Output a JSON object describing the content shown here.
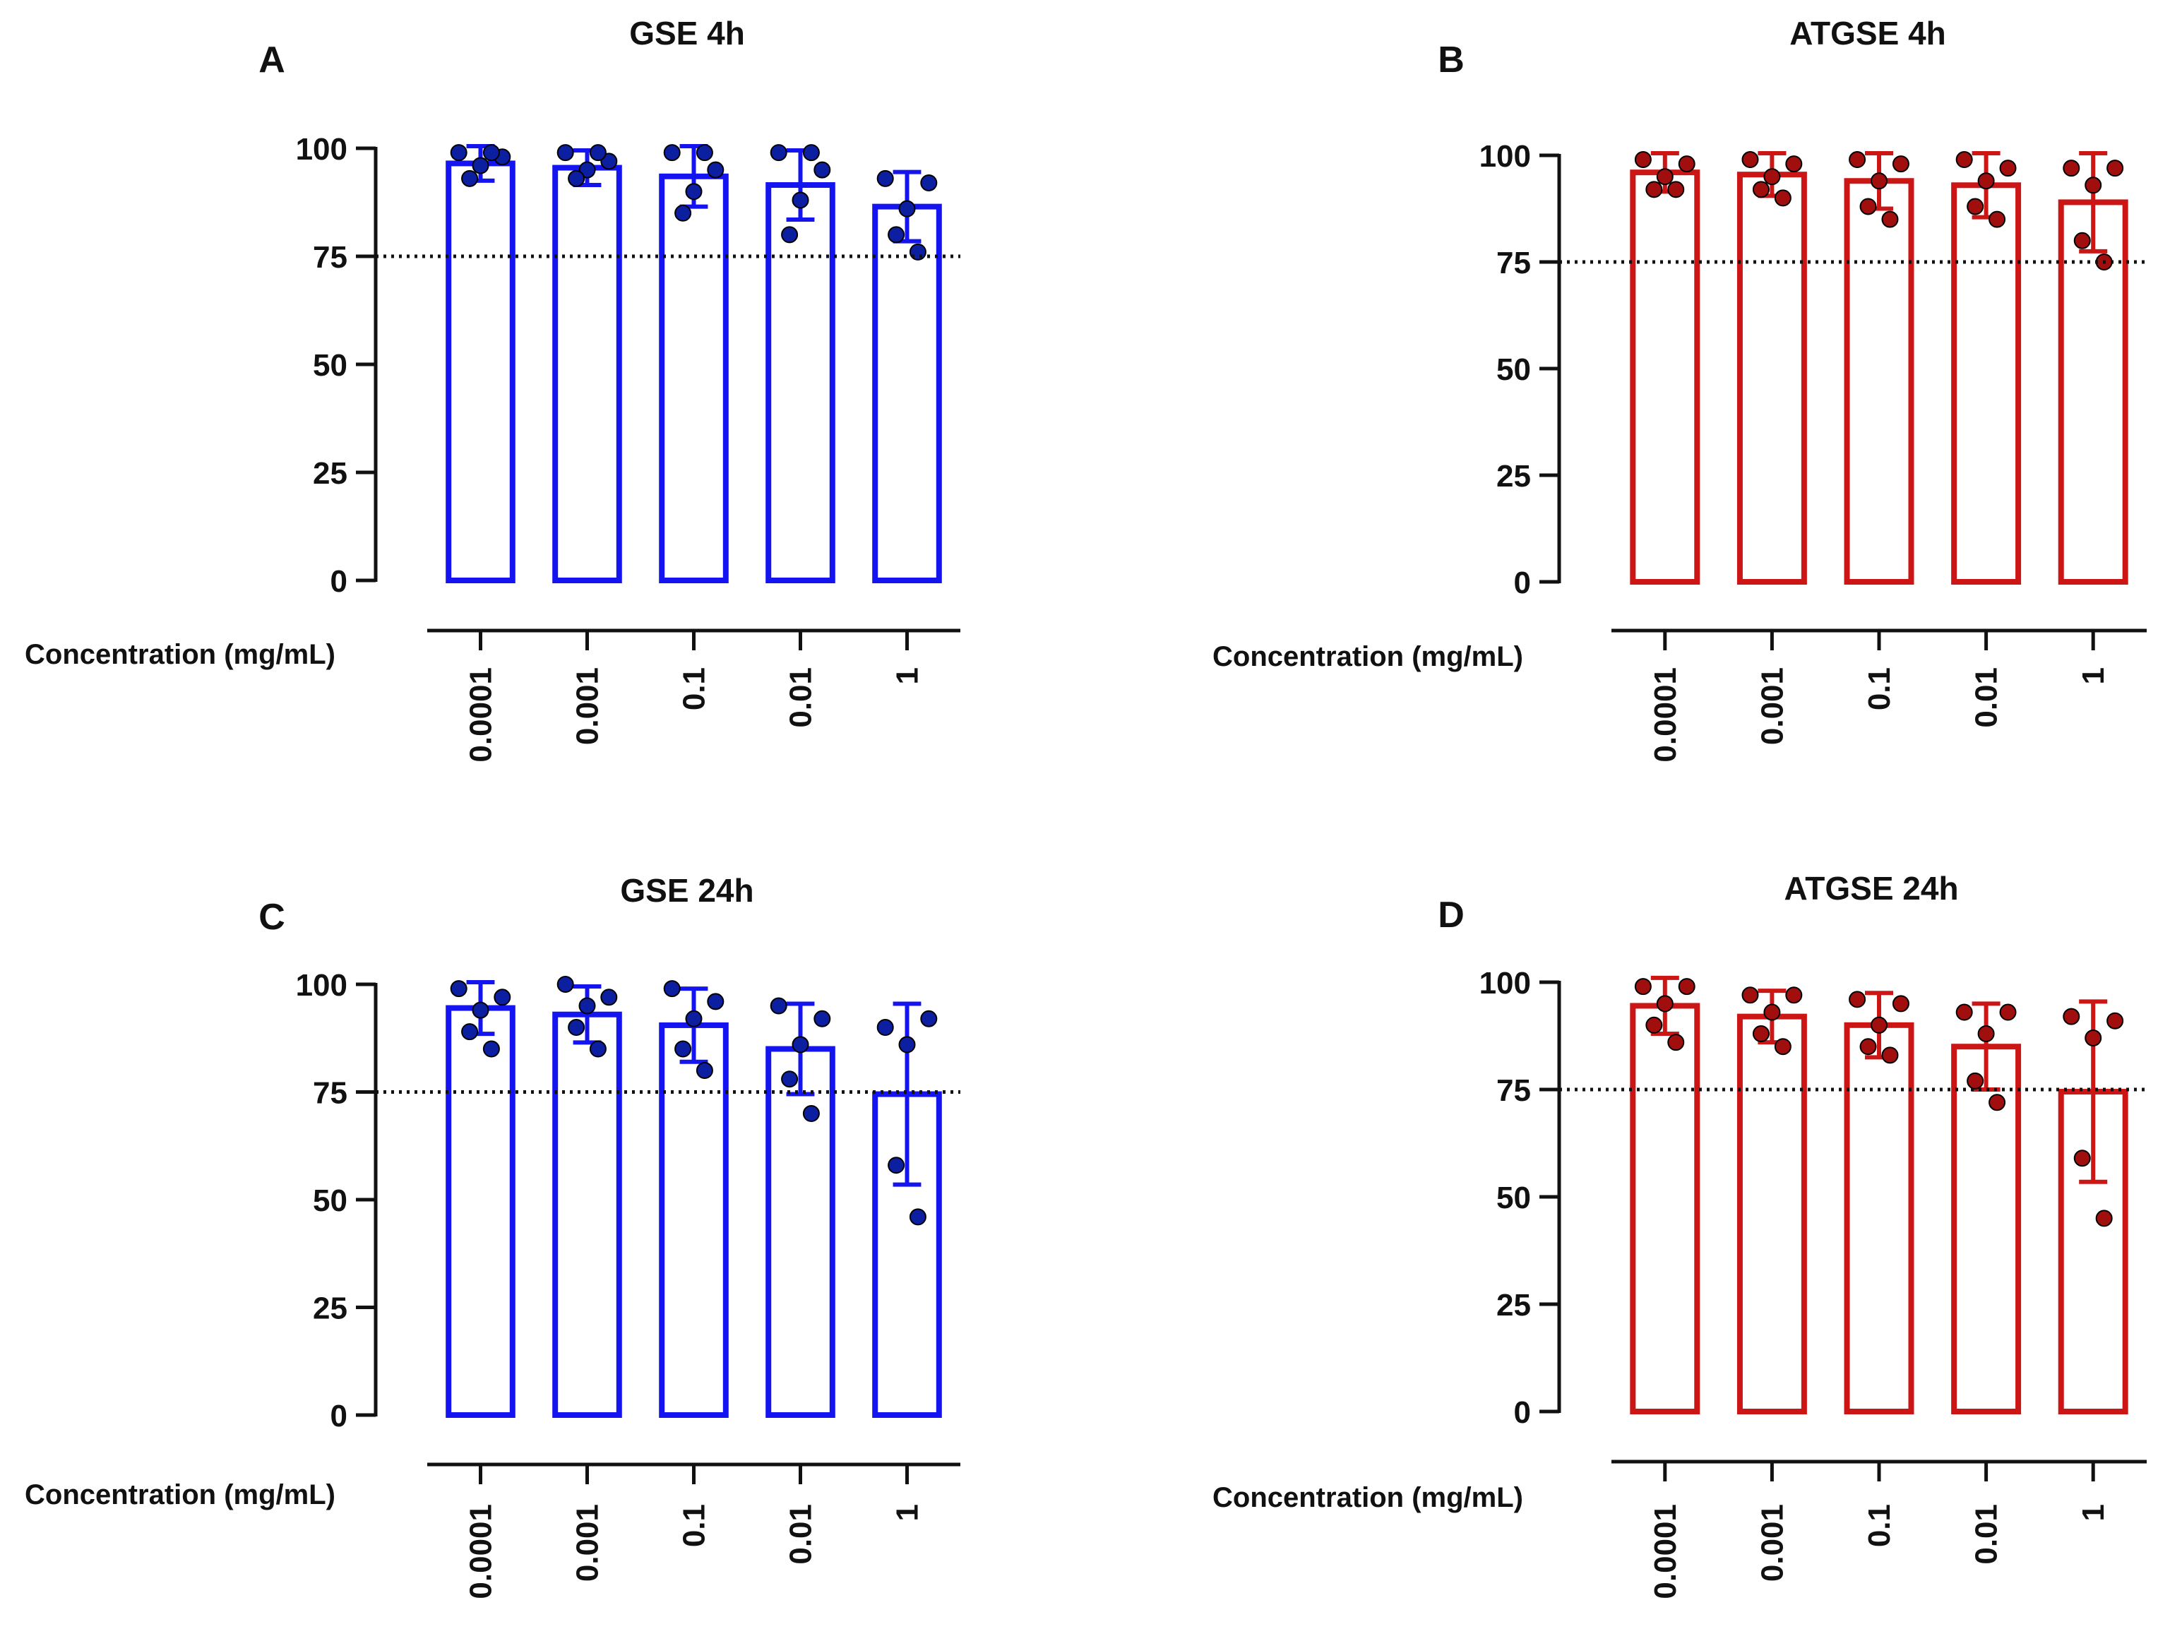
{
  "figure": {
    "background": "#ffffff",
    "axis_color": "#111111",
    "threshold_color": "#111111"
  },
  "chart_data": [
    {
      "panel": "A",
      "title": "GSE 4h",
      "type": "bar",
      "color": "#1414f0",
      "dot_color": "#0c1fa0",
      "xlabel": "Concentration (mg/mL)",
      "ylabel": "",
      "categories": [
        "0.0001",
        "0.001",
        "0.1",
        "0.01",
        "1"
      ],
      "values": [
        96.5,
        95.5,
        93.5,
        91.5,
        86.5
      ],
      "error": [
        4,
        4,
        7,
        8,
        8
      ],
      "points": [
        [
          99,
          98,
          96,
          93,
          99
        ],
        [
          99,
          97,
          95,
          93,
          99
        ],
        [
          99,
          95,
          90,
          85,
          99
        ],
        [
          99,
          95,
          88,
          80,
          99
        ],
        [
          93,
          92,
          86,
          80,
          76
        ]
      ],
      "yticks": [
        0,
        25,
        50,
        75,
        100
      ],
      "ylim": [
        0,
        100
      ],
      "threshold": 75,
      "grid": false
    },
    {
      "panel": "B",
      "title": "ATGSE 4h",
      "type": "bar",
      "color": "#cc1515",
      "dot_color": "#a00e0e",
      "xlabel": "Concentration (mg/mL)",
      "ylabel": "",
      "categories": [
        "0.0001",
        "0.001",
        "0.1",
        "0.01",
        "1"
      ],
      "values": [
        96,
        95.5,
        94,
        93,
        89
      ],
      "error": [
        4.5,
        5,
        6.5,
        7.5,
        11.5
      ],
      "points": [
        [
          99,
          98,
          95,
          92,
          92
        ],
        [
          99,
          98,
          95,
          92,
          90
        ],
        [
          99,
          98,
          94,
          88,
          85
        ],
        [
          99,
          97,
          94,
          88,
          85
        ],
        [
          97,
          97,
          93,
          80,
          75
        ]
      ],
      "yticks": [
        0,
        25,
        50,
        75,
        100
      ],
      "ylim": [
        0,
        100
      ],
      "threshold": 75,
      "grid": false
    },
    {
      "panel": "C",
      "title": "GSE 24h",
      "type": "bar",
      "color": "#1414f0",
      "dot_color": "#0c1fa0",
      "xlabel": "Concentration (mg/mL)",
      "ylabel": "",
      "categories": [
        "0.0001",
        "0.001",
        "0.1",
        "0.01",
        "1"
      ],
      "values": [
        94.5,
        93,
        90.5,
        85,
        74.5
      ],
      "error": [
        6,
        6.5,
        8.5,
        10.5,
        21
      ],
      "points": [
        [
          99,
          97,
          94,
          89,
          85
        ],
        [
          100,
          97,
          95,
          90,
          85
        ],
        [
          99,
          96,
          92,
          85,
          80
        ],
        [
          95,
          92,
          86,
          78,
          70
        ],
        [
          90,
          92,
          86,
          58,
          46
        ]
      ],
      "yticks": [
        0,
        25,
        50,
        75,
        100
      ],
      "ylim": [
        0,
        100
      ],
      "threshold": 75,
      "grid": false
    },
    {
      "panel": "D",
      "title": "ATGSE 24h",
      "type": "bar",
      "color": "#cc1515",
      "dot_color": "#a00e0e",
      "xlabel": "Concentration (mg/mL)",
      "ylabel": "",
      "categories": [
        "0.0001",
        "0.001",
        "0.1",
        "0.01",
        "1"
      ],
      "values": [
        94.5,
        92,
        90,
        85,
        74.5
      ],
      "error": [
        6.5,
        6,
        7.5,
        10,
        21
      ],
      "points": [
        [
          99,
          99,
          95,
          90,
          86
        ],
        [
          97,
          97,
          93,
          88,
          85
        ],
        [
          96,
          95,
          90,
          85,
          83
        ],
        [
          93,
          93,
          88,
          77,
          72
        ],
        [
          92,
          91,
          87,
          59,
          45
        ]
      ],
      "yticks": [
        0,
        25,
        50,
        75,
        100
      ],
      "ylim": [
        0,
        100
      ],
      "threshold": 75,
      "grid": false
    }
  ]
}
